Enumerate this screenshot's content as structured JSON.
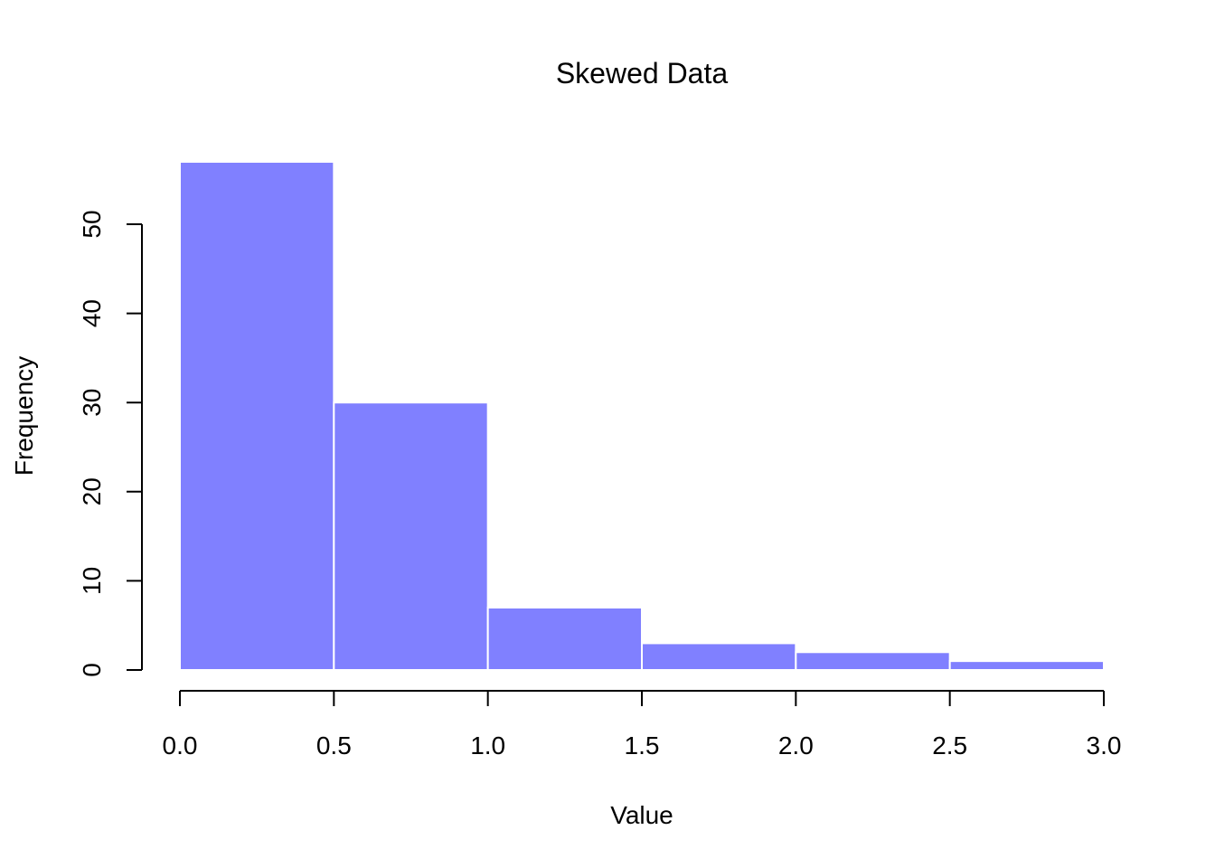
{
  "chart_data": {
    "type": "bar",
    "title": "Skewed Data",
    "xlabel": "Value",
    "ylabel": "Frequency",
    "bins": [
      {
        "start": 0.0,
        "end": 0.5,
        "count": 57
      },
      {
        "start": 0.5,
        "end": 1.0,
        "count": 30
      },
      {
        "start": 1.0,
        "end": 1.5,
        "count": 7
      },
      {
        "start": 1.5,
        "end": 2.0,
        "count": 3
      },
      {
        "start": 2.0,
        "end": 2.5,
        "count": 2
      },
      {
        "start": 2.5,
        "end": 3.0,
        "count": 1
      }
    ],
    "xlim": [
      0,
      3
    ],
    "ylim": [
      0,
      57
    ],
    "x_ticks": [
      "0.0",
      "0.5",
      "1.0",
      "1.5",
      "2.0",
      "2.5",
      "3.0"
    ],
    "y_ticks": [
      "0",
      "10",
      "20",
      "30",
      "40",
      "50"
    ],
    "grid": false,
    "bar_color": "#8080ff",
    "bar_border_color": "#ffffff"
  }
}
